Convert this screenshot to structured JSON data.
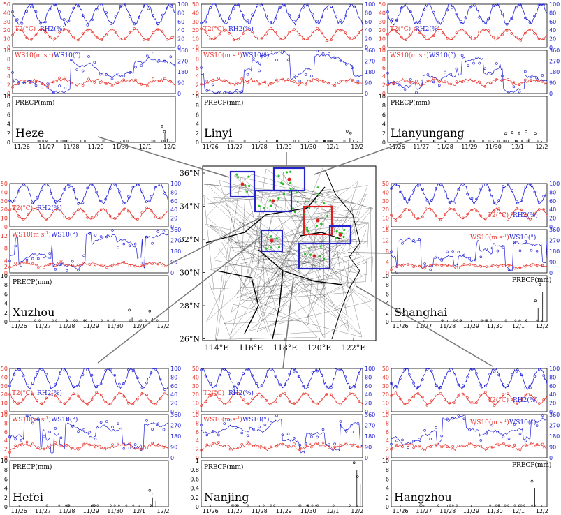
{
  "figure": {
    "colors": {
      "temp": "#e8322b",
      "rh": "#1f1fd8",
      "prec": "#222222",
      "box_blue": "#2424c8",
      "box_red": "#e02020"
    },
    "dates": [
      "11/26",
      "11/27",
      "11/28",
      "11/29",
      "11/30",
      "12/1",
      "12/2"
    ],
    "t2_label": "T2(°C)",
    "rh_label": "RH2(%)",
    "ws_label": "WS10(m s",
    "ws_sup": "-1",
    "ws_close": ")",
    "wd_label": "WS10(°)",
    "prec_label": "PRECP(mm)"
  },
  "map": {
    "lat_labels": [
      "36°N",
      "34°N",
      "32°N",
      "30°N",
      "28°N",
      "26°N"
    ],
    "lon_labels": [
      "114°E",
      "116°E",
      "118°E",
      "120°E",
      "122°E"
    ]
  },
  "chart_data": [
    {
      "type": "line",
      "city": "Heze",
      "series": [
        "T2",
        "RH2",
        "WS10",
        "WD10",
        "PRECP"
      ],
      "t2_ylim": [
        0,
        50
      ],
      "rh_ylim": [
        0,
        100
      ],
      "ws_ylim": [
        0,
        10
      ],
      "wd_ylim": [
        0,
        360
      ],
      "prec_ylim": [
        0,
        10
      ],
      "prec_ticks": [
        "0",
        "2",
        "4",
        "6",
        "8",
        "10"
      ],
      "ws_ticks": [
        "0",
        "2",
        "4",
        "6",
        "8",
        "10"
      ],
      "prec_spikes": [
        [
          6.55,
          2.0
        ],
        [
          6.65,
          0.8
        ]
      ]
    },
    {
      "type": "line",
      "city": "Linyi",
      "series": [
        "T2",
        "RH2",
        "WS10",
        "WD10",
        "PRECP"
      ],
      "t2_ylim": [
        0,
        50
      ],
      "rh_ylim": [
        0,
        100
      ],
      "ws_ylim": [
        0,
        10
      ],
      "wd_ylim": [
        0,
        360
      ],
      "prec_ylim": [
        0,
        10
      ],
      "prec_spikes": [
        [
          6.45,
          0.9
        ],
        [
          6.6,
          0.5
        ]
      ]
    },
    {
      "type": "line",
      "city": "Lianyungang",
      "series": [
        "T2",
        "RH2",
        "WS10",
        "WD10",
        "PRECP"
      ],
      "t2_ylim": [
        0,
        50
      ],
      "rh_ylim": [
        0,
        100
      ],
      "ws_ylim": [
        0,
        10
      ],
      "wd_ylim": [
        0,
        360
      ],
      "prec_ylim": [
        0,
        10
      ],
      "prec_spikes": [
        [
          5.3,
          0.4
        ],
        [
          5.6,
          0.6
        ],
        [
          5.9,
          0.5
        ],
        [
          6.2,
          0.8
        ],
        [
          6.6,
          0.4
        ]
      ]
    },
    {
      "type": "line",
      "city": "Xuzhou",
      "series": [
        "T2",
        "RH2",
        "WS10",
        "WD10",
        "PRECP"
      ],
      "t2_ylim": [
        0,
        50
      ],
      "rh_ylim": [
        0,
        100
      ],
      "ws_ylim": [
        0,
        14
      ],
      "wd_ylim": [
        0,
        360
      ],
      "prec_ylim": [
        0,
        10
      ],
      "ws_ticks": [
        "0",
        "2",
        "4",
        "8",
        "12"
      ],
      "prec_ticks": [
        "0",
        "2",
        "4",
        "6",
        "8",
        "10"
      ],
      "prec_spikes": [
        [
          5.4,
          1.0
        ],
        [
          6.3,
          0.8
        ]
      ]
    },
    {
      "type": "line",
      "city": "Shanghai",
      "series": [
        "T2",
        "RH2",
        "WS10",
        "WD10",
        "PRECP"
      ],
      "t2_ylim": [
        0,
        50
      ],
      "rh_ylim": [
        0,
        100
      ],
      "ws_ylim": [
        0,
        16
      ],
      "wd_ylim": [
        0,
        360
      ],
      "prec_ylim": [
        0,
        10
      ],
      "ws_ticks": [
        "0",
        "4",
        "8",
        "12",
        "16"
      ],
      "prec_ticks": [
        "0",
        "2",
        "4",
        "6",
        "8",
        "10"
      ],
      "prec_spikes": [
        [
          6.8,
          6.5
        ],
        [
          6.6,
          3.0
        ]
      ]
    },
    {
      "type": "line",
      "city": "Hefei",
      "series": [
        "T2",
        "RH2",
        "WS10",
        "WD10",
        "PRECP"
      ],
      "t2_ylim": [
        0,
        50
      ],
      "rh_ylim": [
        0,
        100
      ],
      "ws_ylim": [
        0,
        10
      ],
      "wd_ylim": [
        0,
        360
      ],
      "prec_ylim": [
        0,
        10
      ],
      "ws_ticks": [
        "0",
        "2",
        "4",
        "6",
        "8",
        "10"
      ],
      "prec_ticks": [
        "0",
        "2",
        "4",
        "6",
        "8",
        "10"
      ],
      "prec_spikes": [
        [
          6.3,
          2.0
        ],
        [
          6.45,
          1.2
        ]
      ]
    },
    {
      "type": "line",
      "city": "Nanjing",
      "series": [
        "T2",
        "RH2",
        "WS10",
        "WD10",
        "PRECP"
      ],
      "t2_ylim": [
        0,
        50
      ],
      "rh_ylim": [
        0,
        100
      ],
      "ws_ylim": [
        0,
        10
      ],
      "wd_ylim": [
        0,
        360
      ],
      "prec_ylim": [
        0,
        1
      ],
      "prec_ticks": [
        "0",
        "0.2",
        "0.4",
        "0.6",
        "0.8",
        "1"
      ],
      "prec_spikes": [
        [
          6.75,
          0.8
        ],
        [
          6.9,
          0.5
        ]
      ]
    },
    {
      "type": "line",
      "city": "Hangzhou",
      "series": [
        "T2",
        "RH2",
        "WS10",
        "WD10",
        "PRECP"
      ],
      "t2_ylim": [
        0,
        50
      ],
      "rh_ylim": [
        0,
        100
      ],
      "ws_ylim": [
        0,
        10
      ],
      "wd_ylim": [
        0,
        360
      ],
      "prec_ylim": [
        0,
        10
      ],
      "prec_ticks": [
        "0",
        "2",
        "4",
        "6",
        "8",
        "10"
      ],
      "prec_spikes": [
        [
          6.45,
          4.0
        ]
      ]
    }
  ]
}
